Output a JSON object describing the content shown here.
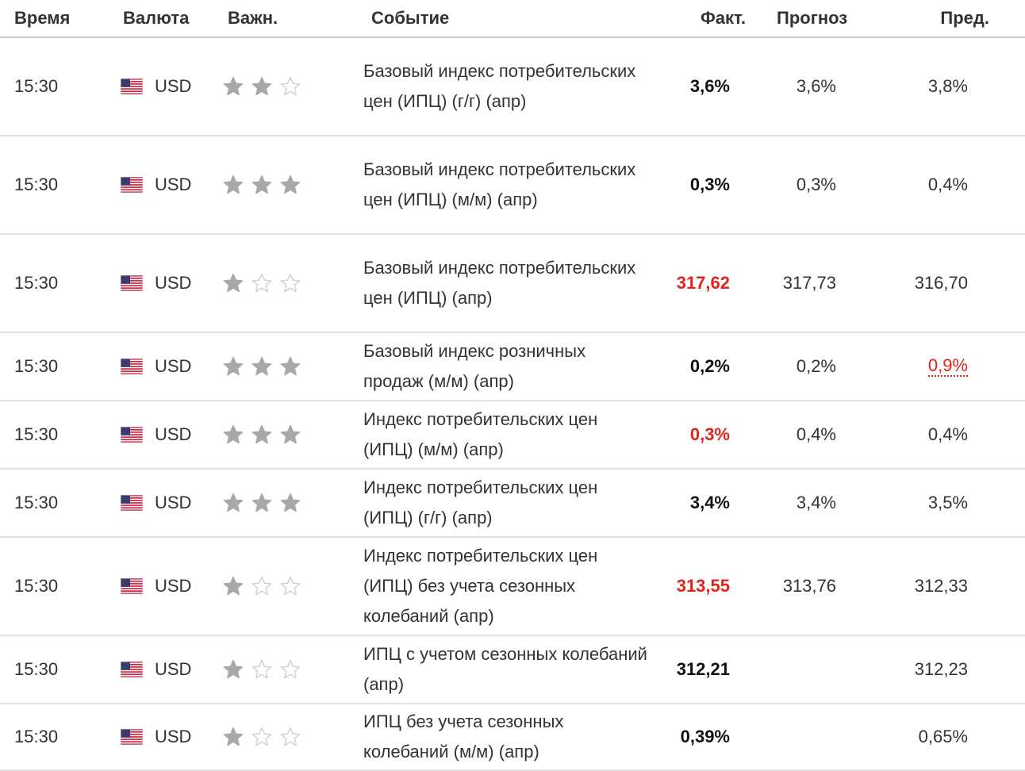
{
  "header": {
    "time": "Время",
    "currency": "Валюта",
    "importance": "Важн.",
    "event": "Событие",
    "actual": "Факт.",
    "forecast": "Прогноз",
    "previous": "Пред."
  },
  "colors": {
    "negative": "#e2231a",
    "star_filled": "#a8a8a8",
    "star_empty": "#cfcfcf"
  },
  "rows": [
    {
      "time": "15:30",
      "currency": "USD",
      "importance": 2,
      "event": "Базовый индекс потребительских цен (ИПЦ) (г/г) (апр)",
      "actual": "3,6%",
      "actual_color": "",
      "forecast": "3,6%",
      "previous": "3,8%",
      "previous_color": ""
    },
    {
      "time": "15:30",
      "currency": "USD",
      "importance": 3,
      "event": "Базовый индекс потребительских цен (ИПЦ) (м/м) (апр)",
      "actual": "0,3%",
      "actual_color": "",
      "forecast": "0,3%",
      "previous": "0,4%",
      "previous_color": ""
    },
    {
      "time": "15:30",
      "currency": "USD",
      "importance": 1,
      "event": "Базовый индекс потребительских цен (ИПЦ) (апр)",
      "actual": "317,62",
      "actual_color": "red",
      "forecast": "317,73",
      "previous": "316,70",
      "previous_color": ""
    },
    {
      "time": "15:30",
      "currency": "USD",
      "importance": 3,
      "event": "Базовый индекс розничных продаж (м/м) (апр)",
      "actual": "0,2%",
      "actual_color": "",
      "forecast": "0,2%",
      "previous": "0,9%",
      "previous_color": "red"
    },
    {
      "time": "15:30",
      "currency": "USD",
      "importance": 3,
      "event": "Индекс потребительских цен (ИПЦ) (м/м) (апр)",
      "actual": "0,3%",
      "actual_color": "red",
      "forecast": "0,4%",
      "previous": "0,4%",
      "previous_color": ""
    },
    {
      "time": "15:30",
      "currency": "USD",
      "importance": 3,
      "event": "Индекс потребительских цен (ИПЦ) (г/г) (апр)",
      "actual": "3,4%",
      "actual_color": "",
      "forecast": "3,4%",
      "previous": "3,5%",
      "previous_color": ""
    },
    {
      "time": "15:30",
      "currency": "USD",
      "importance": 1,
      "event": "Индекс потребительских цен (ИПЦ) без учета сезонных колебаний (апр)",
      "actual": "313,55",
      "actual_color": "red",
      "forecast": "313,76",
      "previous": "312,33",
      "previous_color": ""
    },
    {
      "time": "15:30",
      "currency": "USD",
      "importance": 1,
      "event": "ИПЦ с учетом сезонных колебаний (апр)",
      "actual": "312,21",
      "actual_color": "",
      "forecast": "",
      "previous": "312,23",
      "previous_color": ""
    },
    {
      "time": "15:30",
      "currency": "USD",
      "importance": 1,
      "event": "ИПЦ без учета сезонных колебаний (м/м) (апр)",
      "actual": "0,39%",
      "actual_color": "",
      "forecast": "",
      "previous": "0,65%",
      "previous_color": ""
    }
  ]
}
